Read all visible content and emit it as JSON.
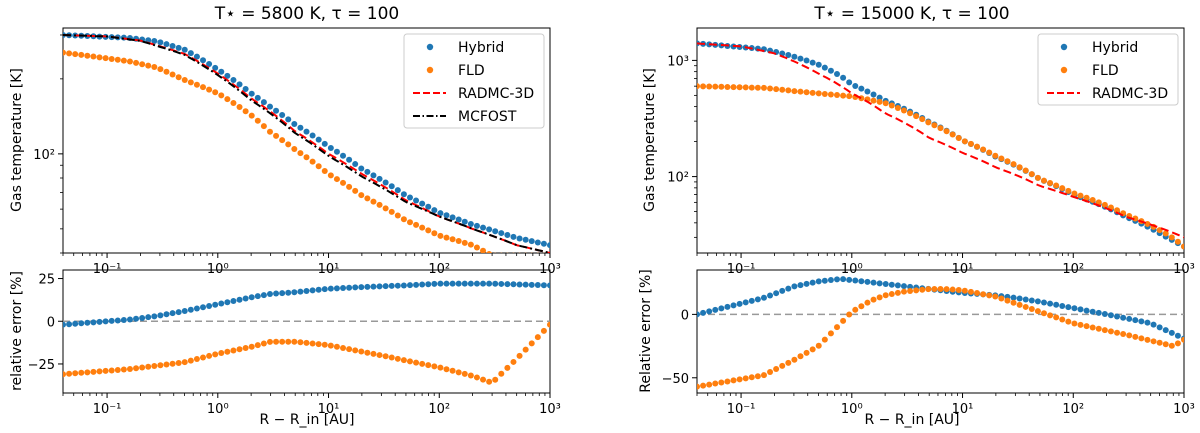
{
  "chart_data": [
    {
      "type": "scatter",
      "title": "T⋆ = 5800 K, τ = 100",
      "xlabel": "R − R_in [AU]",
      "xscale": "log",
      "xlim": [
        0.04,
        1000
      ],
      "x_ticks": [
        0.1,
        1,
        10,
        100,
        1000
      ],
      "x_tick_labels": [
        "10⁻¹",
        "10⁰",
        "10¹",
        "10²",
        "10³"
      ],
      "top": {
        "ylabel": "Gas temperature [K]",
        "yscale": "log",
        "ylim": [
          40,
          320
        ],
        "y_ticks": [
          100
        ],
        "y_tick_labels": [
          "10²"
        ],
        "legend_position": "top-right",
        "series": [
          {
            "name": "Hybrid",
            "style": "dots",
            "color": "#1f77b4",
            "x": [
              0.04,
              0.16,
              0.28,
              0.5,
              1,
              2,
              3,
              5,
              10,
              20,
              50,
              100,
              200,
              500,
              1000
            ],
            "y": [
              300,
              292,
              283,
              262,
              218,
              175,
              154,
              131,
              107,
              87,
              68,
              58,
              52,
              46,
              43
            ]
          },
          {
            "name": "FLD",
            "style": "dots",
            "color": "#ff7f0e",
            "x": [
              0.04,
              0.16,
              0.28,
              0.5,
              1,
              2,
              3,
              5,
              10,
              20,
              50,
              100,
              200,
              300,
              1000
            ],
            "y": [
              255,
              235,
              222,
              198,
              175,
              143,
              122,
              104,
              83,
              68,
              54,
              47,
              43,
              39,
              39
            ]
          },
          {
            "name": "RADMC-3D",
            "style": "dashed",
            "color": "#ff0000",
            "x": [
              0.04,
              0.1,
              0.2,
              0.5,
              1,
              2,
              5,
              10,
              20,
              50,
              100,
              200,
              500,
              1000
            ],
            "y": [
              300,
              296,
              285,
              252,
              210,
              167,
              123,
              100,
              83,
              65,
              56,
              50,
              43,
              40
            ]
          },
          {
            "name": "MCFOST",
            "style": "dashdot",
            "color": "#000000",
            "x": [
              0.04,
              0.1,
              0.2,
              0.5,
              1,
              2,
              5,
              10,
              20,
              50,
              100,
              200,
              500,
              1000
            ],
            "y": [
              300,
              296,
              284,
              250,
              207,
              164,
              121,
              98,
              81,
              64,
              56,
              50,
              43,
              40
            ]
          }
        ]
      },
      "bottom": {
        "ylabel": "relative error [%]",
        "ylim": [
          -42,
          30
        ],
        "y_ticks": [
          -25,
          0,
          25
        ],
        "y_tick_labels": [
          "−25",
          "0",
          "25"
        ],
        "reference_line": 0,
        "series": [
          {
            "name": "Hybrid",
            "style": "dots",
            "color": "#1f77b4",
            "x": [
              0.04,
              0.16,
              0.28,
              0.5,
              1,
              2,
              3,
              5,
              10,
              20,
              50,
              100,
              300,
              1000
            ],
            "y": [
              -2,
              1,
              3,
              6,
              10,
              14,
              16,
              17,
              19,
              20,
              21,
              22,
              22,
              21
            ]
          },
          {
            "name": "FLD",
            "style": "dots",
            "color": "#ff7f0e",
            "x": [
              0.04,
              0.16,
              0.28,
              0.5,
              1,
              2,
              3,
              5,
              10,
              30,
              100,
              200,
              300,
              500,
              1000
            ],
            "y": [
              -31,
              -28,
              -26,
              -24,
              -19,
              -15,
              -12,
              -12,
              -14,
              -20,
              -27,
              -32,
              -36,
              -22,
              -2
            ]
          }
        ]
      }
    },
    {
      "type": "scatter",
      "title": "T⋆ = 15000 K, τ = 100",
      "xlabel": "R − R_in [AU]",
      "xscale": "log",
      "xlim": [
        0.04,
        1000
      ],
      "x_ticks": [
        0.1,
        1,
        10,
        100,
        1000
      ],
      "x_tick_labels": [
        "10⁻¹",
        "10⁰",
        "10¹",
        "10²",
        "10³"
      ],
      "top": {
        "ylabel": "Gas temperature [K]",
        "yscale": "log",
        "ylim": [
          22,
          1900
        ],
        "y_ticks": [
          100,
          1000
        ],
        "y_tick_labels": [
          "10²",
          "10³"
        ],
        "legend_position": "top-right",
        "series": [
          {
            "name": "Hybrid",
            "style": "dots",
            "color": "#1f77b4",
            "x": [
              0.04,
              0.16,
              0.28,
              0.5,
              0.8,
              1,
              2,
              5,
              10,
              20,
              50,
              100,
              300,
              700,
              1000
            ],
            "y": [
              1400,
              1250,
              1100,
              920,
              730,
              620,
              450,
              295,
              205,
              148,
              95,
              70,
              45,
              30,
              25
            ]
          },
          {
            "name": "FLD",
            "style": "dots",
            "color": "#ff7f0e",
            "x": [
              0.04,
              0.16,
              0.3,
              0.5,
              1,
              2,
              5,
              10,
              20,
              50,
              100,
              300,
              700,
              1000
            ],
            "y": [
              600,
              580,
              545,
              520,
              490,
              430,
              290,
              205,
              150,
              95,
              72,
              47,
              32,
              25
            ]
          },
          {
            "name": "RADMC-3D",
            "style": "dashed",
            "color": "#ff0000",
            "x": [
              0.04,
              0.1,
              0.2,
              0.5,
              1,
              2,
              5,
              10,
              20,
              50,
              100,
              300,
              1000
            ],
            "y": [
              1400,
              1320,
              1150,
              770,
              520,
              350,
              215,
              160,
              120,
              83,
              67,
              45,
              30
            ]
          }
        ]
      },
      "bottom": {
        "ylabel": "Relative error [%]",
        "ylim": [
          -62,
          35
        ],
        "y_ticks": [
          -50,
          0
        ],
        "y_tick_labels": [
          "−50",
          "0"
        ],
        "reference_line": 0,
        "series": [
          {
            "name": "Hybrid",
            "style": "dots",
            "color": "#1f77b4",
            "x": [
              0.04,
              0.16,
              0.3,
              0.5,
              0.8,
              1,
              2,
              5,
              10,
              20,
              30,
              50,
              100,
              200,
              500,
              1000
            ],
            "y": [
              0,
              13,
              22,
              26,
              28,
              27,
              24,
              20,
              17,
              15,
              13,
              10,
              5,
              0,
              -7,
              -19
            ]
          },
          {
            "name": "FLD",
            "style": "dots",
            "color": "#ff7f0e",
            "x": [
              0.04,
              0.16,
              0.3,
              0.5,
              0.7,
              1,
              1.5,
              2,
              3,
              5,
              7,
              10,
              20,
              50,
              100,
              300,
              800,
              1000
            ],
            "y": [
              -57,
              -48,
              -36,
              -25,
              -12,
              2,
              11,
              15,
              18,
              20,
              20,
              19,
              14,
              2,
              -7,
              -16,
              -25,
              -20
            ]
          }
        ]
      }
    }
  ]
}
